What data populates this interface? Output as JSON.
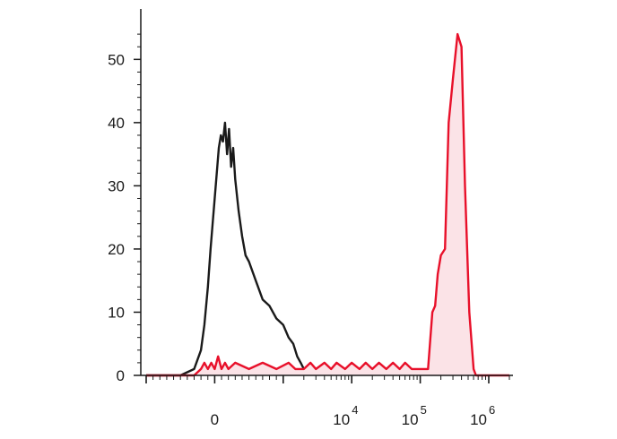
{
  "chart_data": {
    "type": "area",
    "title": "",
    "xlabel": "",
    "ylabel": "",
    "x_scale": "biexponential",
    "xlim": [
      -1000,
      2000000
    ],
    "ylim": [
      0,
      56
    ],
    "y_ticks": [
      0,
      10,
      20,
      30,
      40,
      50
    ],
    "y_tick_labels": [
      "0",
      "10",
      "20",
      "30",
      "40",
      "50"
    ],
    "x_ticks": [
      {
        "value": 0,
        "base": "0",
        "exp": ""
      },
      {
        "value": 10000,
        "base": "10",
        "exp": "4"
      },
      {
        "value": 100000,
        "base": "10",
        "exp": "5"
      },
      {
        "value": 1000000,
        "base": "10",
        "exp": "6"
      }
    ],
    "grid": false,
    "legend": "none",
    "colors": {
      "control": "#1a1a1a",
      "stained": "#e8102a",
      "stained_fill": "#fbe3e7",
      "axis": "#1a1a1a"
    },
    "series": [
      {
        "style": "line",
        "color": "#1a1a1a",
        "points": [
          [
            -1000,
            0
          ],
          [
            -500,
            0
          ],
          [
            -300,
            1
          ],
          [
            -200,
            4
          ],
          [
            -150,
            8
          ],
          [
            -100,
            14
          ],
          [
            -60,
            20
          ],
          [
            -30,
            24
          ],
          [
            0,
            28
          ],
          [
            30,
            32
          ],
          [
            60,
            36
          ],
          [
            90,
            38
          ],
          [
            120,
            37
          ],
          [
            150,
            40
          ],
          [
            180,
            35
          ],
          [
            210,
            39
          ],
          [
            240,
            33
          ],
          [
            270,
            36
          ],
          [
            300,
            31
          ],
          [
            350,
            26
          ],
          [
            400,
            22
          ],
          [
            450,
            19
          ],
          [
            500,
            18
          ],
          [
            600,
            15
          ],
          [
            700,
            12
          ],
          [
            800,
            11
          ],
          [
            900,
            9
          ],
          [
            1000,
            8
          ],
          [
            1200,
            6
          ],
          [
            1400,
            5
          ],
          [
            1600,
            3
          ],
          [
            1800,
            2
          ],
          [
            2000,
            1
          ],
          [
            2300,
            0
          ]
        ]
      },
      {
        "style": "filled-area",
        "color": "#e8102a",
        "points": [
          [
            -1000,
            0
          ],
          [
            -300,
            0
          ],
          [
            -200,
            1
          ],
          [
            -150,
            2
          ],
          [
            -100,
            1
          ],
          [
            -50,
            2
          ],
          [
            0,
            1
          ],
          [
            50,
            3
          ],
          [
            100,
            1
          ],
          [
            150,
            2
          ],
          [
            200,
            1
          ],
          [
            300,
            2
          ],
          [
            500,
            1
          ],
          [
            700,
            2
          ],
          [
            900,
            1
          ],
          [
            1200,
            2
          ],
          [
            1500,
            1
          ],
          [
            2000,
            1
          ],
          [
            2500,
            2
          ],
          [
            3000,
            1
          ],
          [
            4000,
            2
          ],
          [
            5000,
            1
          ],
          [
            6000,
            2
          ],
          [
            8000,
            1
          ],
          [
            10000,
            2
          ],
          [
            13000,
            1
          ],
          [
            16000,
            2
          ],
          [
            20000,
            1
          ],
          [
            25000,
            2
          ],
          [
            32000,
            1
          ],
          [
            40000,
            2
          ],
          [
            50000,
            1
          ],
          [
            60000,
            2
          ],
          [
            75000,
            1
          ],
          [
            100000,
            1
          ],
          [
            130000,
            1
          ],
          [
            150000,
            10
          ],
          [
            165000,
            11
          ],
          [
            180000,
            16
          ],
          [
            200000,
            19
          ],
          [
            230000,
            20
          ],
          [
            260000,
            40
          ],
          [
            300000,
            47
          ],
          [
            350000,
            54
          ],
          [
            400000,
            52
          ],
          [
            450000,
            30
          ],
          [
            520000,
            10
          ],
          [
            600000,
            1
          ],
          [
            650000,
            0
          ],
          [
            2000000,
            0
          ]
        ]
      }
    ]
  }
}
